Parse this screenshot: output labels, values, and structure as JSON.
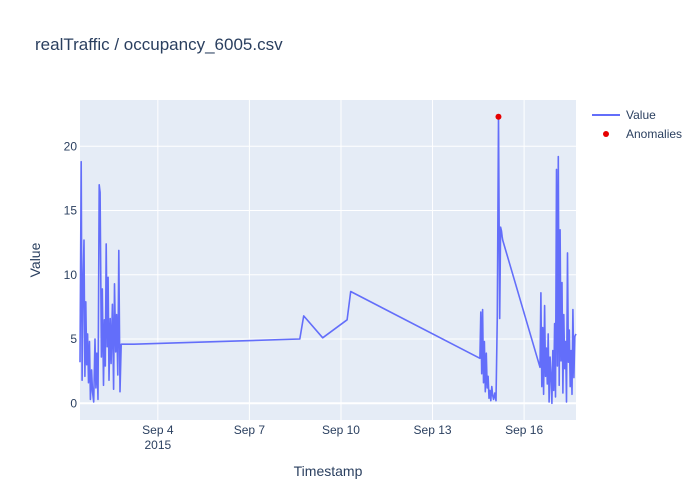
{
  "chart_data": {
    "type": "line",
    "title": "realTraffic / occupancy_6005.csv",
    "xlabel": "Timestamp",
    "ylabel": "Value",
    "x_range_days": [
      1.45,
      17.7
    ],
    "ylim": [
      -1.3,
      23.6
    ],
    "x_ticks": [
      {
        "day": 4,
        "label": "Sep 4",
        "sublabel": "2015"
      },
      {
        "day": 7,
        "label": "Sep 7",
        "sublabel": ""
      },
      {
        "day": 10,
        "label": "Sep 10",
        "sublabel": ""
      },
      {
        "day": 13,
        "label": "Sep 13",
        "sublabel": ""
      },
      {
        "day": 16,
        "label": "Sep 16",
        "sublabel": ""
      }
    ],
    "y_ticks": [
      0,
      5,
      10,
      15,
      20
    ],
    "grid": true,
    "legend_position": "top-right",
    "colors": {
      "value_line": "#636efa",
      "anomaly_marker": "#e60000",
      "plot_bg": "#e5ecf6",
      "grid": "#ffffff",
      "text": "#2a3f5f"
    },
    "series": [
      {
        "name": "Value",
        "mode": "line",
        "x_days": [
          1.45,
          1.49,
          1.52,
          1.55,
          1.58,
          1.61,
          1.64,
          1.67,
          1.7,
          1.73,
          1.76,
          1.79,
          1.83,
          1.86,
          1.9,
          1.94,
          1.97,
          2.0,
          2.04,
          2.08,
          2.11,
          2.15,
          2.18,
          2.22,
          2.25,
          2.28,
          2.31,
          2.34,
          2.37,
          2.4,
          2.44,
          2.47,
          2.51,
          2.55,
          2.58,
          2.62,
          2.65,
          2.69,
          2.72,
          2.76,
          2.8,
          2.84,
          2.88,
          2.91,
          2.95,
          2.99,
          3.03,
          3.06,
          3.1,
          3.14,
          3.18,
          3.22,
          8.65,
          8.78,
          9.4,
          10.2,
          10.32,
          14.55,
          14.58,
          14.61,
          14.64,
          14.67,
          14.7,
          14.73,
          14.76,
          14.79,
          14.82,
          14.85,
          14.88,
          14.91,
          14.94,
          14.97,
          15.0,
          15.04,
          15.08,
          15.12,
          15.16,
          15.2,
          15.23,
          15.26,
          15.28,
          15.3,
          16.52,
          16.55,
          16.58,
          16.61,
          16.64,
          16.67,
          16.7,
          16.73,
          16.76,
          16.79,
          16.82,
          16.85,
          16.88,
          16.91,
          16.94,
          16.97,
          17.0,
          17.03,
          17.06,
          17.09,
          17.12,
          17.15,
          17.18,
          17.21,
          17.24,
          17.27,
          17.3,
          17.33,
          17.36,
          17.39,
          17.42,
          17.45,
          17.48,
          17.51,
          17.54,
          17.57,
          17.6,
          17.63,
          17.66,
          17.7
        ],
        "values": [
          3.2,
          18.8,
          1.8,
          9.5,
          12.7,
          2.1,
          7.9,
          3.0,
          5.4,
          1.6,
          4.8,
          0.3,
          2.6,
          0.9,
          0.1,
          5.0,
          1.2,
          3.9,
          0.3,
          17.0,
          16.4,
          3.6,
          8.9,
          1.4,
          6.5,
          2.9,
          12.4,
          4.4,
          9.8,
          1.8,
          6.6,
          3.1,
          7.7,
          1.1,
          9.3,
          4.0,
          6.9,
          2.2,
          11.9,
          0.9,
          4.6,
          4.6,
          4.6,
          4.6,
          4.6,
          4.6,
          4.6,
          4.6,
          4.6,
          4.6,
          4.6,
          4.6,
          5.0,
          6.8,
          5.1,
          6.5,
          8.7,
          3.5,
          7.1,
          2.3,
          7.3,
          1.6,
          4.8,
          0.9,
          3.9,
          1.2,
          2.1,
          0.4,
          1.0,
          0.2,
          1.3,
          0.6,
          0.3,
          0.8,
          0.2,
          6.8,
          22.3,
          6.6,
          13.7,
          13.4,
          13.0,
          12.7,
          2.8,
          8.6,
          1.3,
          5.9,
          0.7,
          7.6,
          2.1,
          4.3,
          1.5,
          5.4,
          0.1,
          3.6,
          2.1,
          0.0,
          4.1,
          1.0,
          6.2,
          0.5,
          18.2,
          2.9,
          19.2,
          1.4,
          13.5,
          3.3,
          9.4,
          0.8,
          6.9,
          2.7,
          4.8,
          0.1,
          11.7,
          3.2,
          5.7,
          1.3,
          4.1,
          0.7,
          7.3,
          2.0,
          5.2,
          5.4
        ]
      },
      {
        "name": "Anomalies",
        "mode": "markers",
        "x_days": [
          15.16
        ],
        "values": [
          22.3
        ]
      }
    ]
  }
}
